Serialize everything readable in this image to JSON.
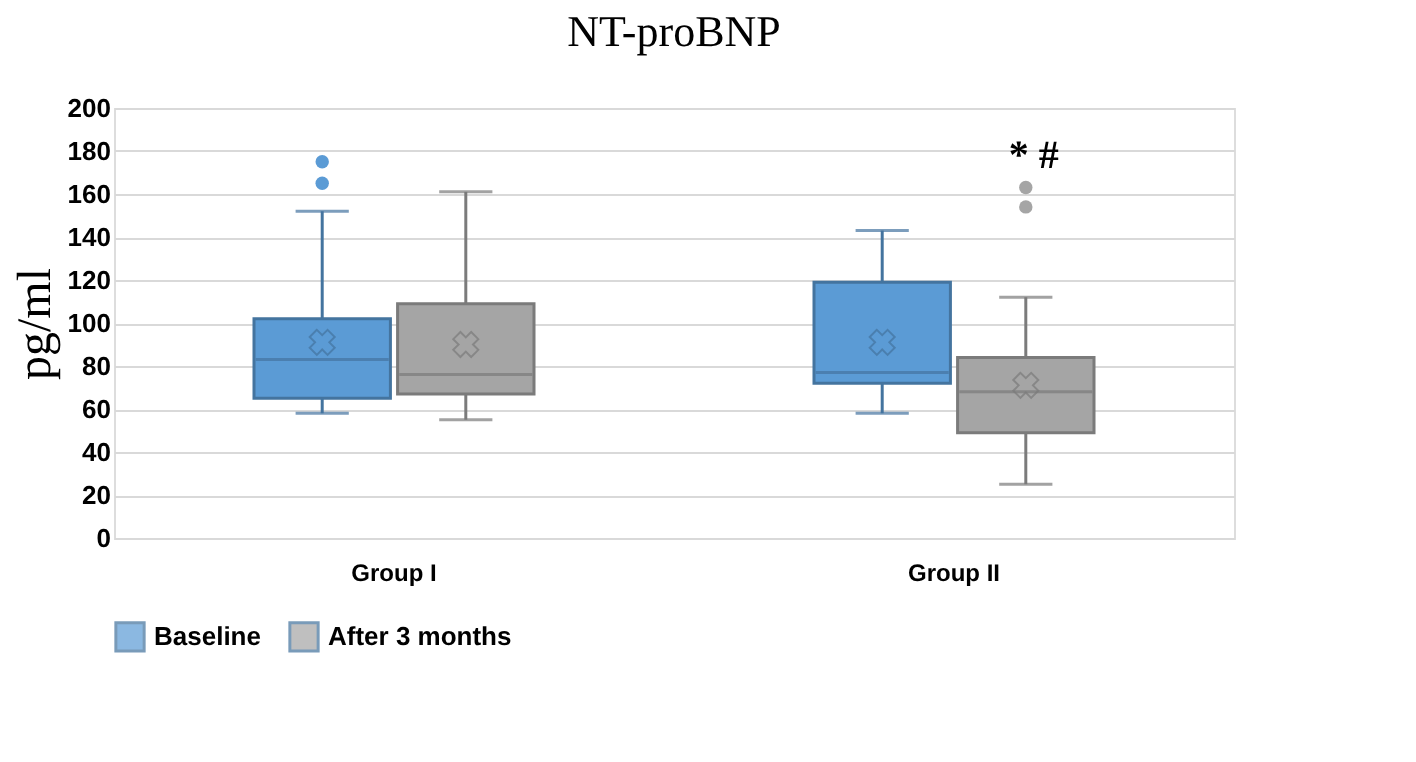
{
  "chart_data": {
    "type": "box",
    "title": "NT-proBNP",
    "ylabel": "pg/ml",
    "categories": [
      "Group I",
      "Group II"
    ],
    "series": [
      {
        "name": "Baseline",
        "color": "#5b9bd5",
        "boxes": [
          {
            "low": 58,
            "q1": 65,
            "median": 83,
            "q3": 102,
            "high": 152,
            "mean": 91,
            "outliers": [
              175,
              165
            ]
          },
          {
            "low": 58,
            "q1": 72,
            "median": 77,
            "q3": 119,
            "high": 143,
            "mean": 91
          }
        ]
      },
      {
        "name": "After 3 months",
        "color": "#a5a5a5",
        "boxes": [
          {
            "low": 55,
            "q1": 67,
            "median": 76,
            "q3": 109,
            "high": 161,
            "mean": 90
          },
          {
            "low": 25,
            "q1": 49,
            "median": 68,
            "q3": 84,
            "high": 112,
            "mean": 71,
            "outliers": [
              163,
              154
            ]
          }
        ]
      }
    ],
    "annotations": [
      "* #"
    ],
    "ylim": [
      0,
      200
    ],
    "yticks": [
      0,
      20,
      40,
      60,
      80,
      100,
      120,
      140,
      160,
      180,
      200
    ],
    "grid": "y",
    "legend": "bottom"
  }
}
